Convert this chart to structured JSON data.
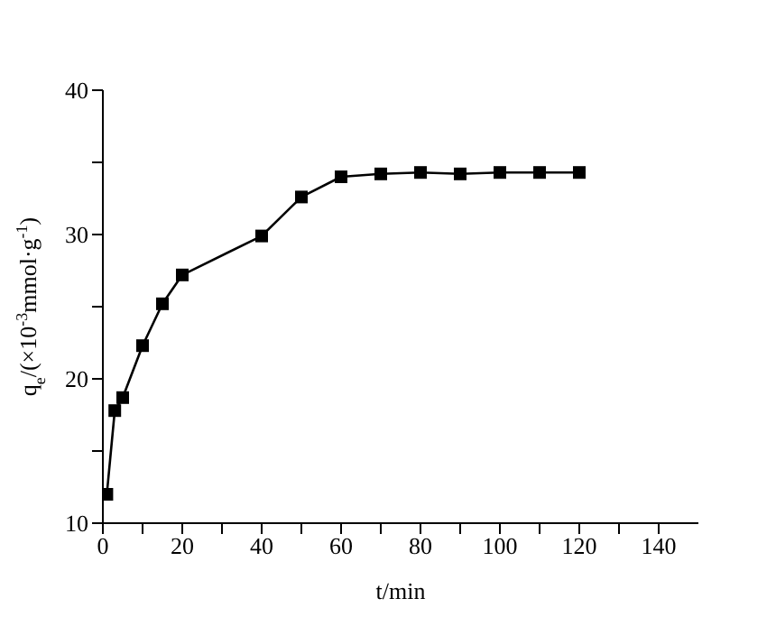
{
  "chart_data": {
    "type": "line",
    "xlabel": "t/min",
    "ylabel": "q$_{e}$/(×10$^{-3}$mmol·g$^{-1}$)",
    "x": [
      1,
      3,
      5,
      10,
      15,
      20,
      40,
      50,
      60,
      70,
      80,
      90,
      100,
      110,
      120
    ],
    "series": [
      {
        "color": "#000000",
        "values": [
          12,
          17.8,
          18.7,
          22.3,
          25.2,
          27.2,
          29.9,
          32.6,
          34.0,
          34.2,
          34.3,
          34.2,
          34.3,
          34.3,
          34.3
        ]
      }
    ],
    "xlim": [
      0,
      150
    ],
    "xticks": [
      0,
      {
        "value": 10,
        "label": null
      },
      20,
      {
        "value": 30,
        "label": null
      },
      40,
      {
        "value": 50,
        "label": null
      },
      60,
      {
        "value": 70,
        "label": null
      },
      80,
      {
        "value": 90,
        "label": null
      },
      100,
      {
        "value": 110,
        "label": null
      },
      120,
      {
        "value": 130,
        "label": null
      },
      140
    ],
    "ylim": [
      10,
      40
    ],
    "yticks": [
      10,
      {
        "value": 15,
        "label": null
      },
      20,
      {
        "value": 25,
        "label": null
      },
      30,
      {
        "value": 35,
        "label": null
      },
      40
    ],
    "grid": false,
    "legend": false,
    "marker": "square",
    "line_style": "solid"
  }
}
